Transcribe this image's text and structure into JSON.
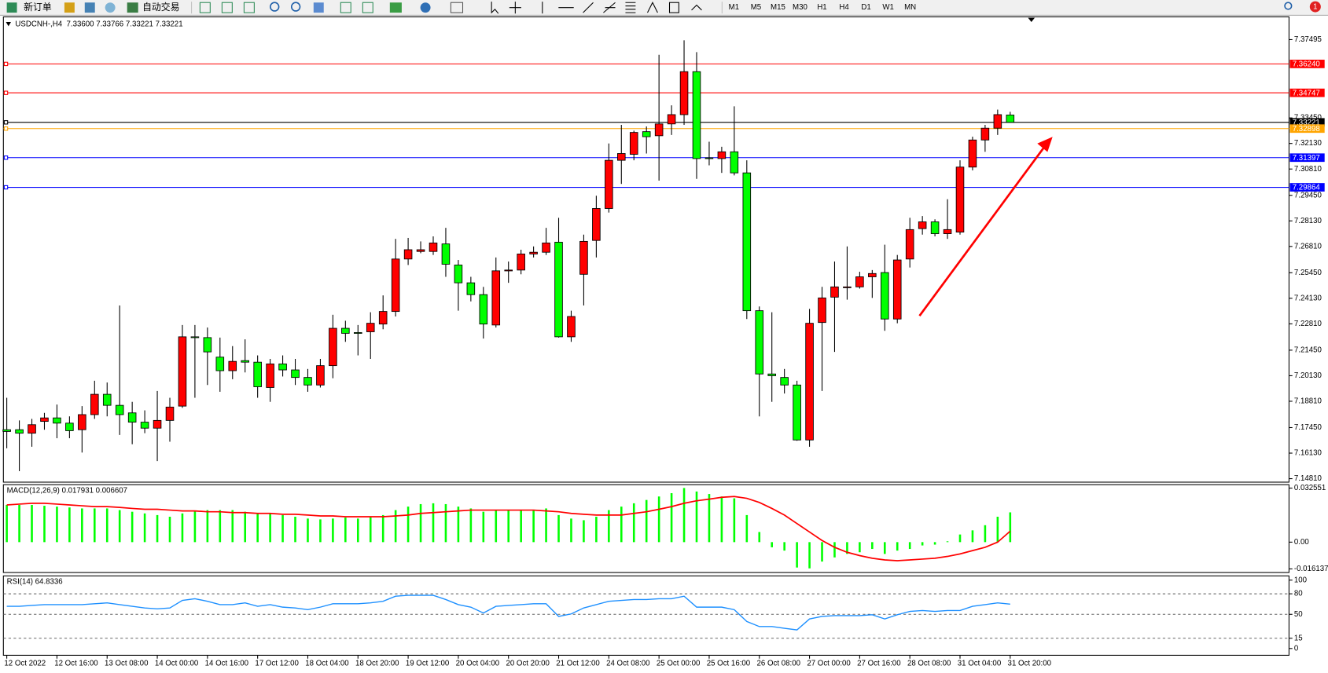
{
  "toolbar": {
    "new_order": "新订单",
    "auto_trading": "自动交易",
    "timeframes": [
      "M1",
      "M5",
      "M15",
      "M30",
      "H1",
      "H4",
      "D1",
      "W1",
      "MN"
    ],
    "notifications": 1
  },
  "chart_data": [
    {
      "type": "candlestick",
      "title": "USDCNH-,H4  7.33600 7.33766 7.33221 7.33221",
      "up_color": "#ff0000",
      "down_color": "#00ff00",
      "categories": [
        "12 Oct 2022",
        null,
        null,
        null,
        "12 Oct 16:00",
        null,
        null,
        null,
        "13 Oct 08:00",
        null,
        null,
        null,
        "14 Oct 00:00",
        null,
        null,
        null,
        "14 Oct 16:00",
        null,
        null,
        null,
        "17 Oct 12:00",
        null,
        null,
        null,
        "18 Oct 04:00",
        null,
        null,
        null,
        "18 Oct 20:00",
        null,
        null,
        null,
        "19 Oct 12:00",
        null,
        null,
        null,
        "20 Oct 04:00",
        null,
        null,
        null,
        "20 Oct 20:00",
        null,
        null,
        null,
        "21 Oct 12:00",
        null,
        null,
        null,
        "24 Oct 08:00",
        null,
        null,
        null,
        "25 Oct 00:00",
        null,
        null,
        null,
        "25 Oct 16:00",
        null,
        null,
        null,
        "26 Oct 08:00",
        null,
        null,
        null,
        "27 Oct 00:00",
        null,
        null,
        null,
        "27 Oct 16:00",
        null,
        null,
        null,
        "28 Oct 08:00",
        null,
        null,
        null,
        "31 Oct 04:00",
        null,
        null,
        null,
        "31 Oct 20:00"
      ],
      "open": [
        7.1734,
        7.1734,
        7.1716,
        7.1777,
        7.1795,
        7.1768,
        7.1734,
        7.1812,
        7.1917,
        7.186,
        7.1821,
        7.1773,
        7.1742,
        7.1782,
        7.1856,
        7.2214,
        7.221,
        7.2109,
        7.2039,
        7.2091,
        7.2083,
        7.1952,
        7.2074,
        7.2043,
        7.2004,
        7.1965,
        7.2065,
        7.2258,
        7.2236,
        7.224,
        7.228,
        7.2345,
        7.2616,
        7.2655,
        7.2655,
        7.2694,
        7.2585,
        7.2493,
        7.2432,
        7.2275,
        7.2555,
        7.2559,
        7.2642,
        7.2651,
        7.2703,
        7.2214,
        7.2537,
        7.2712,
        7.2877,
        7.3126,
        7.3157,
        7.3274,
        7.3253,
        7.3314,
        7.3362,
        7.3584,
        7.3139,
        7.3135,
        7.317,
        7.3061,
        7.2349,
        7.2022,
        7.2004,
        7.1965,
        7.1681,
        7.2288,
        7.2419,
        7.2472,
        7.2472,
        7.2524,
        7.2546,
        7.2306,
        7.2616,
        7.2773,
        7.2808,
        7.2747,
        7.2755,
        7.3091,
        7.3231,
        7.3292,
        7.336
      ],
      "high": [
        7.1899,
        7.1782,
        7.179,
        7.1821,
        7.1864,
        7.1803,
        7.1856,
        7.1987,
        7.1978,
        7.2376,
        7.1878,
        7.1834,
        7.1934,
        7.1899,
        7.2275,
        7.2275,
        7.2262,
        7.221,
        7.2166,
        7.2201,
        7.2118,
        7.21,
        7.2118,
        7.21,
        7.2048,
        7.21,
        7.2328,
        7.2297,
        7.2275,
        7.2341,
        7.2428,
        7.272,
        7.2725,
        7.2707,
        7.2733,
        7.2777,
        7.2611,
        7.2524,
        7.2472,
        7.2624,
        7.2603,
        7.2664,
        7.2681,
        7.2777,
        7.2829,
        7.2349,
        7.2742,
        7.2943,
        7.3213,
        7.3309,
        7.3279,
        7.3301,
        7.3671,
        7.341,
        7.3746,
        7.3685,
        7.3222,
        7.3196,
        7.3405,
        7.3126,
        7.2371,
        7.2341,
        7.2048,
        7.1987,
        7.2358,
        7.2472,
        7.2603,
        7.2681,
        7.255,
        7.2559,
        7.269,
        7.2637,
        7.2829,
        7.2838,
        7.2821,
        7.2925,
        7.3126,
        7.3248,
        7.3309,
        7.3388,
        7.33766
      ],
      "low": [
        7.1638,
        7.152,
        7.1646,
        7.1734,
        7.169,
        7.169,
        7.1616,
        7.179,
        7.1803,
        7.1707,
        7.1659,
        7.1716,
        7.1572,
        7.1672,
        7.1847,
        7.1899,
        7.1965,
        7.193,
        7.1995,
        7.203,
        7.1899,
        7.1878,
        7.2009,
        7.1965,
        7.193,
        7.1952,
        7.2,
        7.2188,
        7.2118,
        7.21,
        7.2253,
        7.2319,
        7.2585,
        7.2646,
        7.2637,
        7.2524,
        7.2349,
        7.2397,
        7.2205,
        7.2262,
        7.2493,
        7.2537,
        7.2624,
        7.2637,
        7.221,
        7.2188,
        7.2376,
        7.2624,
        7.2856,
        7.3004,
        7.3126,
        7.3161,
        7.3021,
        7.3257,
        7.3309,
        7.303,
        7.31,
        7.3061,
        7.3048,
        7.2306,
        7.1803,
        7.1878,
        7.1921,
        7.1677,
        7.1646,
        7.1934,
        7.2136,
        7.2406,
        7.2463,
        7.2415,
        7.2245,
        7.2284,
        7.2572,
        7.2742,
        7.2733,
        7.272,
        7.2742,
        7.3074,
        7.317,
        7.3257,
        7.33221
      ],
      "close": [
        7.1725,
        7.1716,
        7.176,
        7.1795,
        7.1768,
        7.1729,
        7.1812,
        7.1917,
        7.186,
        7.1812,
        7.1773,
        7.1742,
        7.1782,
        7.1851,
        7.2214,
        7.221,
        7.2136,
        7.2039,
        7.2087,
        7.2083,
        7.1956,
        7.2074,
        7.2043,
        7.2004,
        7.1965,
        7.2065,
        7.2258,
        7.2232,
        7.2232,
        7.2284,
        7.2345,
        7.2616,
        7.2664,
        7.2664,
        7.2699,
        7.2589,
        7.2493,
        7.2432,
        7.228,
        7.2555,
        7.2559,
        7.2642,
        7.2651,
        7.2699,
        7.2214,
        7.2319,
        7.2707,
        7.2877,
        7.3126,
        7.3161,
        7.327,
        7.3248,
        7.3314,
        7.3362,
        7.3584,
        7.3135,
        7.3135,
        7.317,
        7.3061,
        7.2349,
        7.2022,
        7.2013,
        7.1965,
        7.1681,
        7.2284,
        7.2415,
        7.2472,
        7.2472,
        7.2524,
        7.2541,
        7.2306,
        7.2611,
        7.2768,
        7.2808,
        7.2747,
        7.2768,
        7.3091,
        7.3231,
        7.3292,
        7.3362,
        7.33221
      ],
      "ylim": [
        7.1463,
        7.3867
      ],
      "yticks": [
        7.37495,
        {
          "value": 7.3345,
          "label": "7.33450"
        },
        {
          "value": 7.3213,
          "label": "7.32130"
        },
        {
          "value": 7.3081,
          "label": "7.30810"
        },
        {
          "value": 7.2945,
          "label": "7.29450"
        },
        {
          "value": 7.2813,
          "label": "7.28130"
        },
        {
          "value": 7.2681,
          "label": "7.26810"
        },
        {
          "value": 7.2545,
          "label": "7.25450"
        },
        {
          "value": 7.2413,
          "label": "7.24130"
        },
        {
          "value": 7.2281,
          "label": "7.22810"
        },
        {
          "value": 7.2145,
          "label": "7.21450"
        },
        {
          "value": 7.2013,
          "label": "7.20130"
        },
        {
          "value": 7.1881,
          "label": "7.18810"
        },
        {
          "value": 7.1745,
          "label": "7.17450"
        },
        {
          "value": 7.1613,
          "label": "7.16130"
        },
        {
          "value": 7.1481,
          "label": "7.14810"
        }
      ],
      "levels": [
        {
          "value": 7.3624,
          "label": "7.36240",
          "color": "#ff0000"
        },
        {
          "value": 7.34747,
          "label": "7.34747",
          "color": "#ff0000"
        },
        {
          "value": 7.33221,
          "label": "7.33221",
          "color": "#000000"
        },
        {
          "value": 7.32898,
          "label": "7.32898",
          "color": "#ffa500"
        },
        {
          "value": 7.31397,
          "label": "7.31397",
          "color": "#0000ff"
        },
        {
          "value": 7.29864,
          "label": "7.29864",
          "color": "#0000ff"
        }
      ]
    },
    {
      "type": "macd",
      "title": "MACD(12,26,9) 0.017931 0.006607",
      "histogram": {
        "color": "#00ff00",
        "values": [
          0.0224,
          0.0224,
          0.0224,
          0.0219,
          0.0214,
          0.0209,
          0.0203,
          0.0203,
          0.0203,
          0.0193,
          0.0183,
          0.0173,
          0.0163,
          0.0153,
          0.0173,
          0.0188,
          0.0193,
          0.0193,
          0.0193,
          0.0183,
          0.0173,
          0.0173,
          0.0163,
          0.0153,
          0.0142,
          0.0137,
          0.0142,
          0.0148,
          0.0142,
          0.0153,
          0.0163,
          0.0193,
          0.0214,
          0.0229,
          0.0234,
          0.0229,
          0.0214,
          0.0203,
          0.0183,
          0.0193,
          0.0193,
          0.0193,
          0.0193,
          0.0203,
          0.0163,
          0.0142,
          0.0132,
          0.0153,
          0.0193,
          0.0214,
          0.0234,
          0.0254,
          0.0275,
          0.0295,
          0.0326,
          0.0305,
          0.029,
          0.0275,
          0.0264,
          0.0163,
          0.0061,
          -0.0031,
          -0.0051,
          -0.0153,
          -0.0158,
          -0.0117,
          -0.0092,
          -0.0071,
          -0.0061,
          -0.0041,
          -0.0071,
          -0.0051,
          -0.0041,
          -0.002,
          -0.0015,
          0.0005,
          0.0046,
          0.0071,
          0.0102,
          0.0153,
          0.017931
        ]
      },
      "signal": {
        "color": "#ff0000",
        "values": [
          0.0224,
          0.0229,
          0.0234,
          0.0234,
          0.0229,
          0.0224,
          0.0219,
          0.0214,
          0.0214,
          0.0209,
          0.0203,
          0.0198,
          0.0198,
          0.0193,
          0.0188,
          0.0188,
          0.0183,
          0.0183,
          0.0178,
          0.0178,
          0.0173,
          0.0173,
          0.0168,
          0.0168,
          0.0163,
          0.0158,
          0.0158,
          0.0153,
          0.0153,
          0.0153,
          0.0153,
          0.0158,
          0.0163,
          0.0173,
          0.0178,
          0.0183,
          0.0188,
          0.0193,
          0.0193,
          0.0193,
          0.0193,
          0.0193,
          0.0193,
          0.0188,
          0.0183,
          0.0173,
          0.0168,
          0.0163,
          0.0163,
          0.0163,
          0.0173,
          0.0183,
          0.0198,
          0.0214,
          0.0234,
          0.0249,
          0.0259,
          0.027,
          0.0275,
          0.0264,
          0.0239,
          0.0203,
          0.0163,
          0.0112,
          0.0061,
          0.001,
          -0.0031,
          -0.0061,
          -0.0081,
          -0.0097,
          -0.0107,
          -0.0112,
          -0.0107,
          -0.0102,
          -0.0097,
          -0.0086,
          -0.0071,
          -0.0051,
          -0.0031,
          0,
          0.006607
        ]
      },
      "ylim": [
        -0.0183,
        0.0346
      ],
      "yticks": [
        0.032551,
        {
          "value": 0,
          "label": "0.00"
        },
        -0.016137
      ]
    },
    {
      "type": "line",
      "title": "RSI(14) 64.8336",
      "color": "#1e90ff",
      "values": [
        61.7,
        61.7,
        63.0,
        64.2,
        64.2,
        64.2,
        64.2,
        65.4,
        66.7,
        64.2,
        61.7,
        59.3,
        58.0,
        59.3,
        70.4,
        72.8,
        69.1,
        64.2,
        64.2,
        66.7,
        61.7,
        64.2,
        60.5,
        59.3,
        56.8,
        60.5,
        65.4,
        65.4,
        65.4,
        66.7,
        69.1,
        76.5,
        77.8,
        77.8,
        77.8,
        71.6,
        64.2,
        60.5,
        51.9,
        61.7,
        63.0,
        64.2,
        65.4,
        65.4,
        46.9,
        50.6,
        59.3,
        64.2,
        69.1,
        70.4,
        71.6,
        71.6,
        72.8,
        72.8,
        76.5,
        60.5,
        60.5,
        60.5,
        56.8,
        39.5,
        32.1,
        32.1,
        29.6,
        27.2,
        43.2,
        46.9,
        48.1,
        48.1,
        48.1,
        49.4,
        43.2,
        49.4,
        54.3,
        55.6,
        54.3,
        55.6,
        55.6,
        61.7,
        64.2,
        66.7,
        64.8336
      ],
      "ylim": [
        -9.9,
        106.2
      ],
      "yticks": [
        100,
        80,
        50,
        15,
        0
      ],
      "levels": [
        80,
        50,
        15
      ]
    }
  ]
}
